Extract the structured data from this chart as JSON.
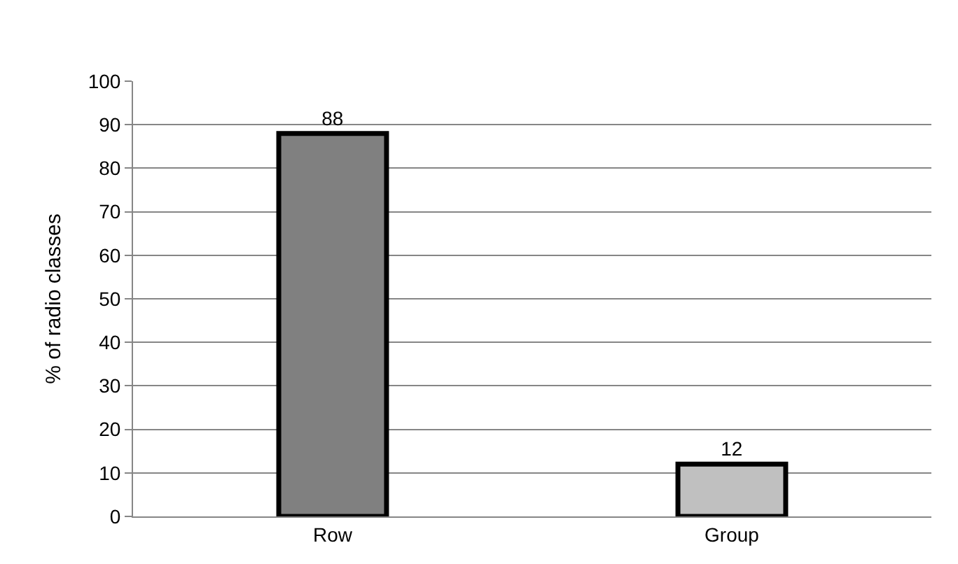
{
  "chart_data": {
    "type": "bar",
    "ylabel": "% of radio classes",
    "categories": [
      "Row",
      "Group"
    ],
    "values": [
      88,
      12
    ],
    "colors": [
      "#808080",
      "#c0c0c0"
    ],
    "ylim": [
      0,
      100
    ],
    "yticks": [
      0,
      10,
      20,
      30,
      40,
      50,
      60,
      70,
      80,
      90,
      100
    ],
    "grid": "y",
    "data_labels": true
  }
}
